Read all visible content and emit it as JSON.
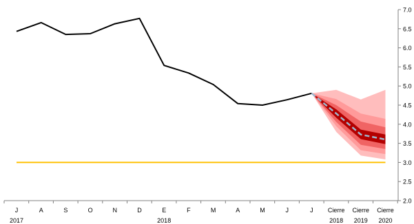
{
  "chart_data": {
    "type": "line",
    "x_ticks": [
      {
        "label": "J",
        "sub": ""
      },
      {
        "label": "A",
        "sub": ""
      },
      {
        "label": "S",
        "sub": ""
      },
      {
        "label": "O",
        "sub": ""
      },
      {
        "label": "N",
        "sub": ""
      },
      {
        "label": "D",
        "sub": ""
      },
      {
        "label": "E",
        "sub": ""
      },
      {
        "label": "F",
        "sub": ""
      },
      {
        "label": "M",
        "sub": ""
      },
      {
        "label": "A",
        "sub": ""
      },
      {
        "label": "M",
        "sub": ""
      },
      {
        "label": "J",
        "sub": ""
      },
      {
        "label": "J",
        "sub": ""
      },
      {
        "label": "Cierre",
        "sub": "2018"
      },
      {
        "label": "Cierre",
        "sub": "2019"
      },
      {
        "label": "Cierre",
        "sub": "2020"
      }
    ],
    "year_labels": [
      {
        "label": "2017",
        "at_index": 0
      },
      {
        "label": "2018",
        "at_index": 6
      }
    ],
    "history": [
      6.43,
      6.66,
      6.35,
      6.37,
      6.63,
      6.77,
      5.54,
      5.34,
      5.04,
      4.54,
      4.5,
      4.64,
      4.81
    ],
    "forecast": {
      "x_index": [
        12,
        13,
        14,
        15
      ],
      "median": [
        4.81,
        4.28,
        3.73,
        3.6
      ],
      "bands": [
        {
          "lower": [
            4.81,
            3.8,
            3.18,
            3.08
          ],
          "upper": [
            4.81,
            4.9,
            4.65,
            4.9
          ],
          "color": "#ffbdbd"
        },
        {
          "lower": [
            4.81,
            3.95,
            3.32,
            3.22
          ],
          "upper": [
            4.81,
            4.66,
            4.28,
            4.14
          ],
          "color": "#ff9a9a"
        },
        {
          "lower": [
            4.81,
            4.06,
            3.46,
            3.35
          ],
          "upper": [
            4.81,
            4.5,
            4.07,
            3.92
          ],
          "color": "#f06464"
        },
        {
          "lower": [
            4.81,
            4.17,
            3.61,
            3.48
          ],
          "upper": [
            4.81,
            4.39,
            3.86,
            3.73
          ],
          "color": "#b30000"
        }
      ]
    },
    "target": {
      "value": 3.0,
      "color": "#ffc000"
    },
    "y_ticks": [
      "2.0",
      "2.5",
      "3.0",
      "3.5",
      "4.0",
      "4.5",
      "5.0",
      "5.5",
      "6.0",
      "6.5",
      "7.0"
    ],
    "ylim": [
      2.0,
      7.0
    ],
    "colors": {
      "history": "#000000",
      "median": "#9db8cf",
      "axis": "#808080"
    },
    "grid": false,
    "legend": "none"
  }
}
